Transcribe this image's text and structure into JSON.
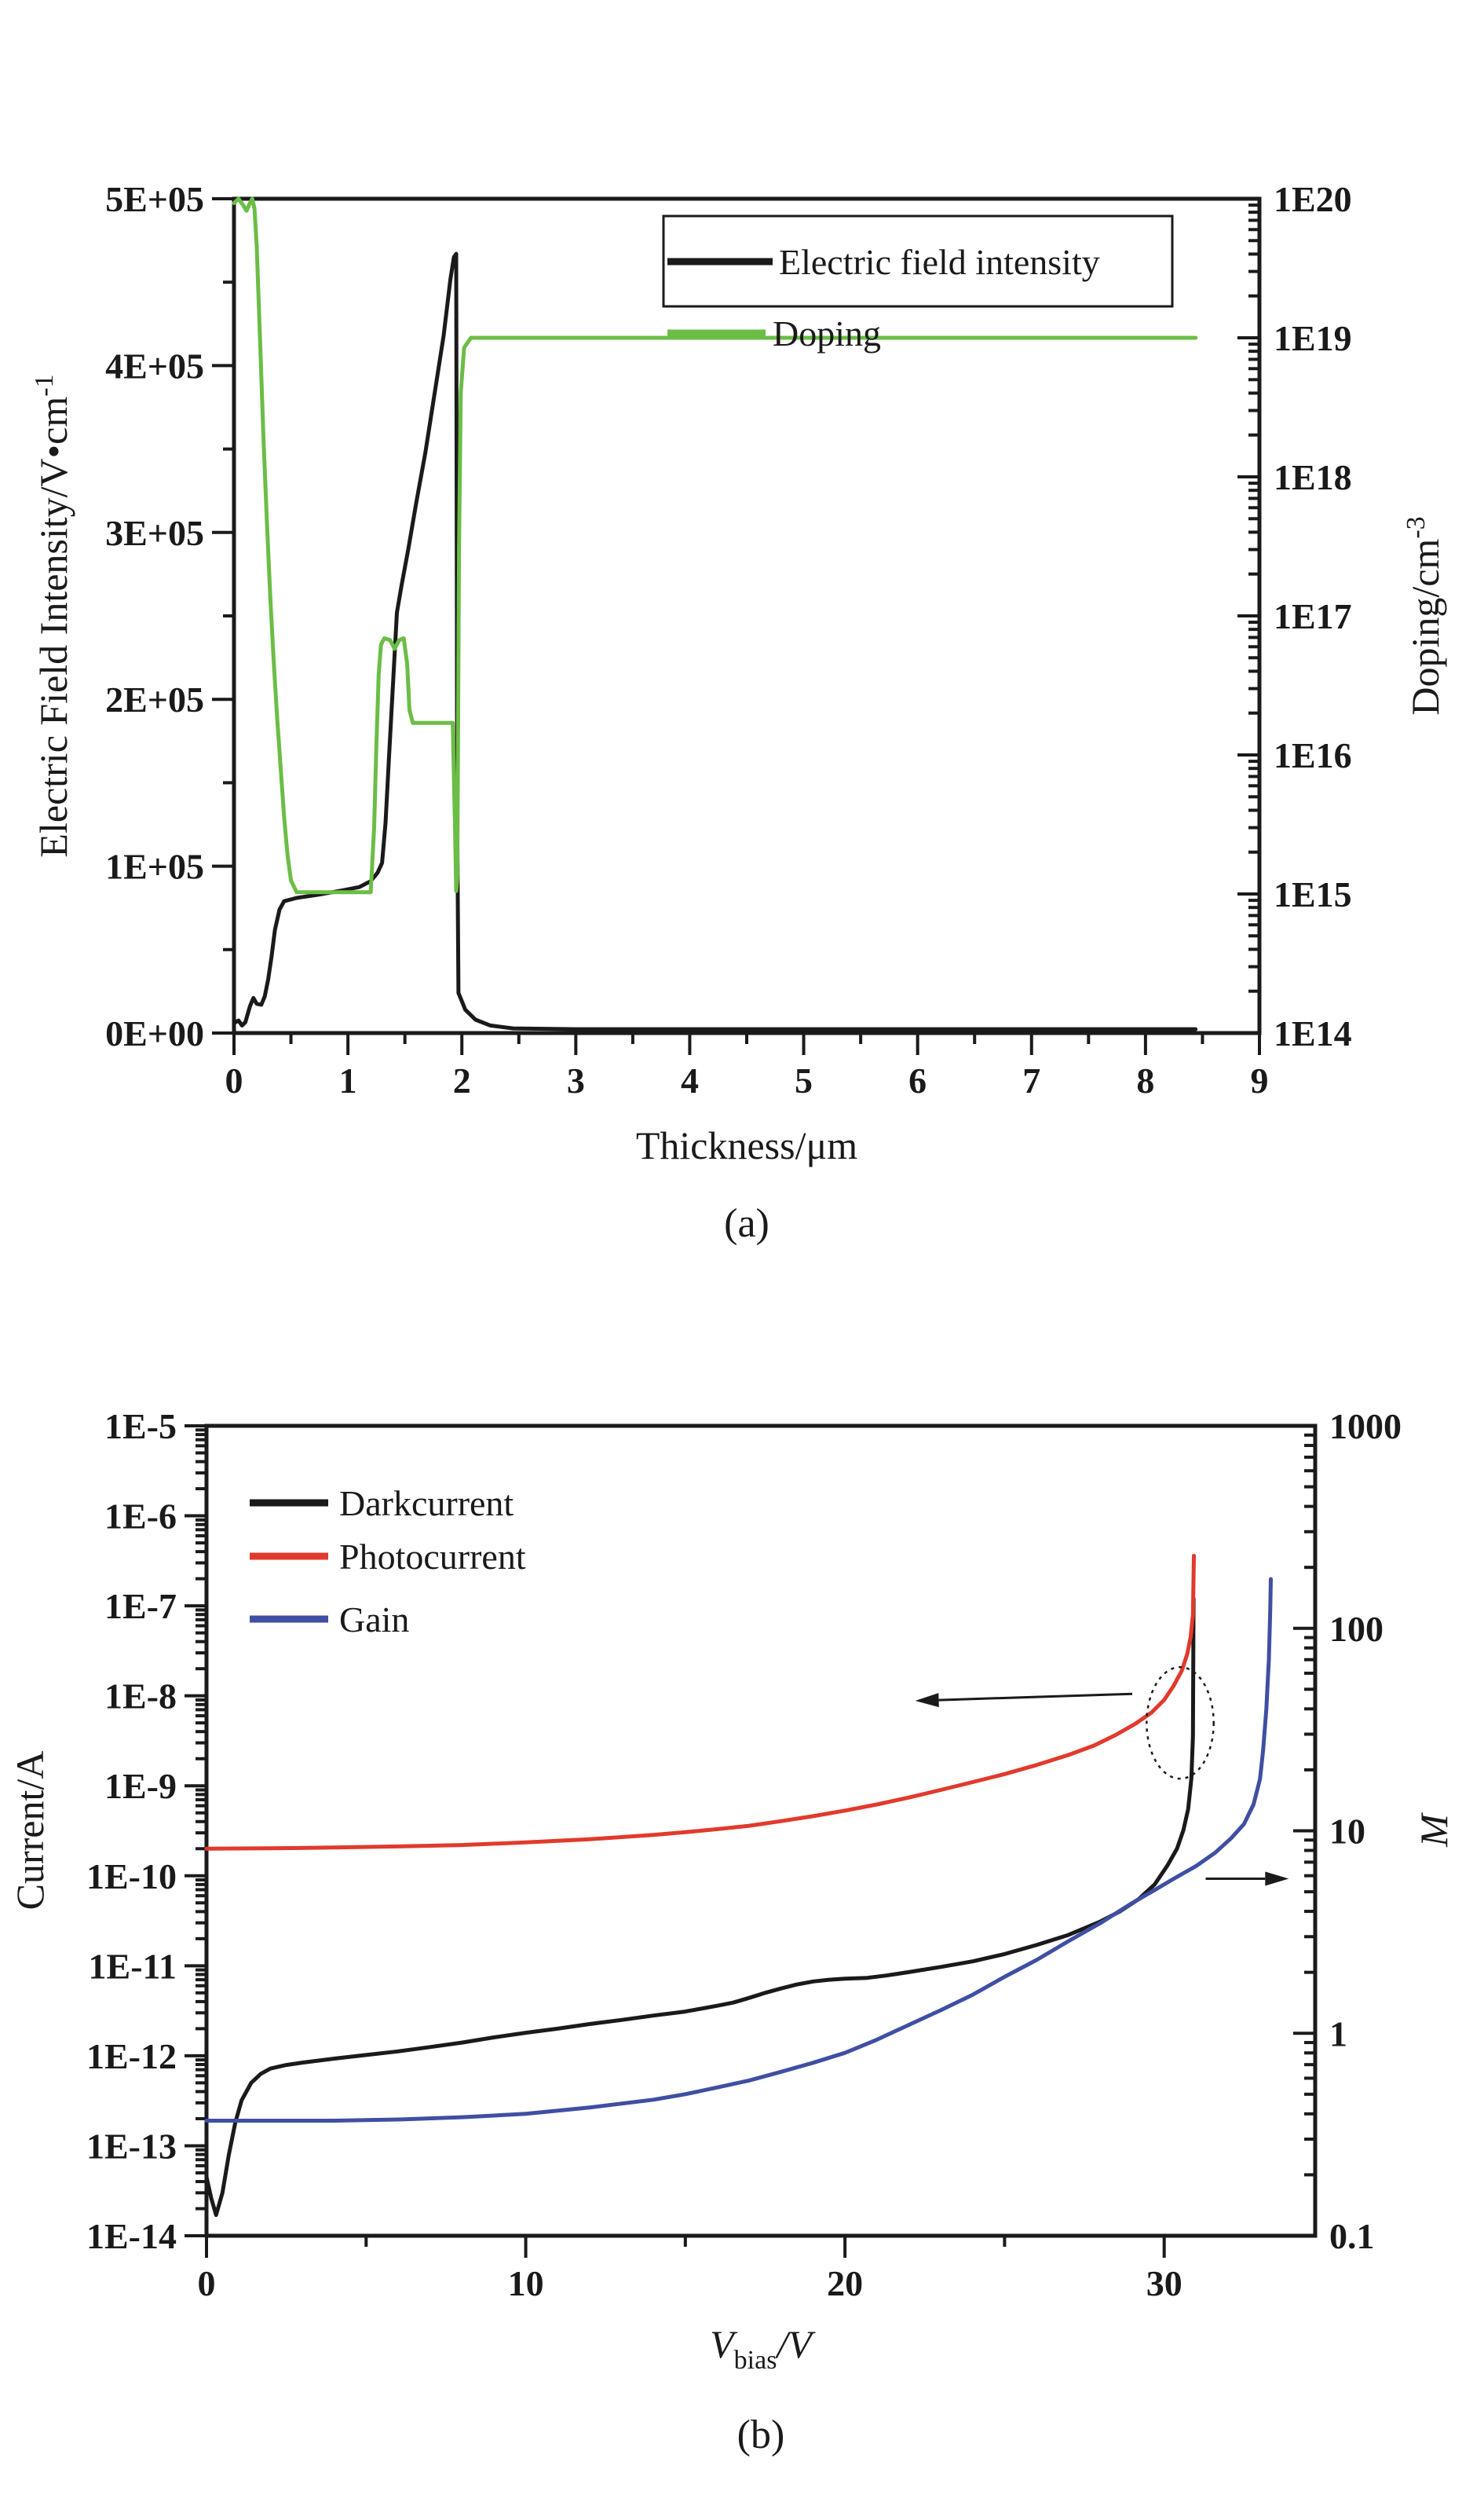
{
  "figure": {
    "background": "#ffffff"
  },
  "captions": {
    "a": "(a)",
    "b": "(b)"
  },
  "colors": {
    "electric_field": "#1a1a1a",
    "doping": "#6bbd46",
    "darkcurrent": "#1a1a1a",
    "photocurrent": "#e13a2c",
    "gain": "#3f4fa3"
  },
  "chart_data": [
    {
      "id": "a",
      "type": "line",
      "x_axis": {
        "label": "Thickness/μm",
        "scale": "linear",
        "range": [
          0,
          9
        ],
        "major_ticks": [
          0,
          1,
          2,
          3,
          4,
          5,
          6,
          7,
          8,
          9
        ],
        "tick_labels": [
          "0",
          "1",
          "2",
          "3",
          "4",
          "5",
          "6",
          "7",
          "8",
          "9"
        ],
        "minor_step": 0.5
      },
      "left_axis": {
        "label": "Electric Field Intensity/V•cm",
        "label_superscript": "-1",
        "scale": "linear",
        "range": [
          0,
          500000
        ],
        "major_ticks": [
          0,
          100000,
          200000,
          300000,
          400000,
          500000
        ],
        "tick_labels": [
          "0E+00",
          "1E+05",
          "2E+05",
          "3E+05",
          "4E+05",
          "5E+05"
        ],
        "minor_step": 50000
      },
      "right_axis": {
        "label": "Doping/cm",
        "label_superscript": "-3",
        "scale": "log",
        "range": [
          100000000000000.0,
          1e+20
        ],
        "tick_labels": [
          "1E14",
          "1E15",
          "1E16",
          "1E17",
          "1E18",
          "1E19",
          "1E20"
        ]
      },
      "legend": {
        "items": [
          {
            "label": "Electric field intensity",
            "color": "#1a1a1a",
            "boxed": true
          },
          {
            "label": "Doping",
            "color": "#6bbd46",
            "boxed": false
          }
        ]
      },
      "series": [
        {
          "name": "Electric field intensity",
          "axis": "left",
          "color": "#1a1a1a",
          "points": [
            [
              0,
              6000
            ],
            [
              0.04,
              7500
            ],
            [
              0.07,
              4500
            ],
            [
              0.1,
              6500
            ],
            [
              0.14,
              16000
            ],
            [
              0.17,
              21000
            ],
            [
              0.2,
              17500
            ],
            [
              0.24,
              17000
            ],
            [
              0.27,
              22000
            ],
            [
              0.3,
              32000
            ],
            [
              0.33,
              46000
            ],
            [
              0.36,
              62000
            ],
            [
              0.4,
              74000
            ],
            [
              0.44,
              79000
            ],
            [
              0.55,
              81000
            ],
            [
              0.75,
              83000
            ],
            [
              0.95,
              85500
            ],
            [
              1.1,
              87500
            ],
            [
              1.2,
              91000
            ],
            [
              1.26,
              96000
            ],
            [
              1.3,
              102000
            ],
            [
              1.33,
              126000
            ],
            [
              1.36,
              165000
            ],
            [
              1.4,
              215000
            ],
            [
              1.43,
              252000
            ],
            [
              1.47,
              268000
            ],
            [
              1.53,
              290000
            ],
            [
              1.6,
              318000
            ],
            [
              1.68,
              348000
            ],
            [
              1.76,
              383000
            ],
            [
              1.84,
              418000
            ],
            [
              1.9,
              452000
            ],
            [
              1.93,
              465000
            ],
            [
              1.95,
              467000
            ],
            [
              1.96,
              120000
            ],
            [
              1.97,
              24000
            ],
            [
              2.03,
              14000
            ],
            [
              2.12,
              8000
            ],
            [
              2.25,
              4500
            ],
            [
              2.45,
              2800
            ],
            [
              3,
              2300
            ],
            [
              8.44,
              2300
            ]
          ]
        },
        {
          "name": "Doping",
          "axis": "right",
          "color": "#6bbd46",
          "points": [
            [
              0,
              9.3e+19
            ],
            [
              0.04,
              1e+20
            ],
            [
              0.08,
              9e+19
            ],
            [
              0.11,
              8.2e+19
            ],
            [
              0.14,
              9.3e+19
            ],
            [
              0.16,
              1e+20
            ],
            [
              0.18,
              8.5e+19
            ],
            [
              0.2,
              4.5e+19
            ],
            [
              0.23,
              9e+18
            ],
            [
              0.26,
              1.8e+18
            ],
            [
              0.29,
              4.5e+17
            ],
            [
              0.32,
              1.3e+17
            ],
            [
              0.35,
              4.5e+16
            ],
            [
              0.38,
              1.8e+16
            ],
            [
              0.41,
              8000000000000000.0
            ],
            [
              0.44,
              3600000000000000.0
            ],
            [
              0.47,
              1900000000000000.0
            ],
            [
              0.5,
              1250000000000000.0
            ],
            [
              0.55,
              1030000000000000.0
            ],
            [
              1.2,
              1030000000000000.0
            ],
            [
              1.23,
              3000000000000000.0
            ],
            [
              1.25,
              1.2e+16
            ],
            [
              1.27,
              3.8e+16
            ],
            [
              1.29,
              6.2e+16
            ],
            [
              1.32,
              6.9e+16
            ],
            [
              1.37,
              6.7e+16
            ],
            [
              1.41,
              5.8e+16
            ],
            [
              1.45,
              6.7e+16
            ],
            [
              1.49,
              6.9e+16
            ],
            [
              1.52,
              4.5e+16
            ],
            [
              1.54,
              2.1e+16
            ],
            [
              1.57,
              1.7e+16
            ],
            [
              1.92,
              1.7e+16
            ],
            [
              1.94,
              3000000000000000.0
            ],
            [
              1.95,
              1050000000000000.0
            ],
            [
              1.96,
              1300000000000000.0
            ],
            [
              1.975,
              3e+17
            ],
            [
              1.99,
              4e+18
            ],
            [
              2.02,
              8.5e+18
            ],
            [
              2.08,
              1e+19
            ],
            [
              8.44,
              1e+19
            ]
          ]
        }
      ]
    },
    {
      "id": "b",
      "type": "line",
      "x_axis": {
        "label_parts": {
          "v": "V",
          "sub": "bias",
          "rest": "/V"
        },
        "scale": "linear",
        "range": [
          0,
          34.73
        ],
        "major_ticks": [
          0,
          10,
          20,
          30
        ],
        "tick_labels": [
          "0",
          "10",
          "20",
          "30"
        ],
        "minor_step": 5
      },
      "left_axis": {
        "label": "Current/A",
        "label_superscript": "",
        "scale": "log",
        "range": [
          1e-14,
          1e-05
        ],
        "tick_labels": [
          "1E-14",
          "1E-13",
          "1E-12",
          "1E-11",
          "1E-10",
          "1E-9",
          "1E-8",
          "1E-7",
          "1E-6",
          "1E-5"
        ]
      },
      "right_axis": {
        "label": "M",
        "label_italic": true,
        "label_superscript": "",
        "scale": "log",
        "range": [
          0.1,
          1000
        ],
        "tick_labels": [
          "0.1",
          "1",
          "10",
          "100",
          "1000"
        ]
      },
      "legend": {
        "items": [
          {
            "label": "Darkcurrent",
            "color": "#1a1a1a",
            "boxed": false
          },
          {
            "label": "Photocurrent",
            "color": "#e13a2c",
            "boxed": false
          },
          {
            "label": "Gain",
            "color": "#3f4fa3",
            "boxed": false
          }
        ]
      },
      "series": [
        {
          "name": "Darkcurrent",
          "axis": "left",
          "color": "#1a1a1a",
          "points": [
            [
              0,
              4.5e-14
            ],
            [
              0.15,
              2.6e-14
            ],
            [
              0.3,
              1.7e-14
            ],
            [
              0.5,
              3e-14
            ],
            [
              0.7,
              8e-14
            ],
            [
              0.9,
              1.8e-13
            ],
            [
              1.1,
              3.2e-13
            ],
            [
              1.4,
              5e-13
            ],
            [
              1.7,
              6.3e-13
            ],
            [
              2,
              7.2e-13
            ],
            [
              2.5,
              7.9e-13
            ],
            [
              3,
              8.4e-13
            ],
            [
              4,
              9.3e-13
            ],
            [
              5,
              1.02e-12
            ],
            [
              6,
              1.12e-12
            ],
            [
              7,
              1.25e-12
            ],
            [
              8,
              1.4e-12
            ],
            [
              9,
              1.6e-12
            ],
            [
              10,
              1.8e-12
            ],
            [
              11,
              2e-12
            ],
            [
              12,
              2.25e-12
            ],
            [
              13,
              2.5e-12
            ],
            [
              14,
              2.8e-12
            ],
            [
              15,
              3.1e-12
            ],
            [
              16,
              3.6e-12
            ],
            [
              16.5,
              3.9e-12
            ],
            [
              17,
              4.4e-12
            ],
            [
              17.5,
              5e-12
            ],
            [
              18,
              5.6e-12
            ],
            [
              18.5,
              6.2e-12
            ],
            [
              19,
              6.7e-12
            ],
            [
              19.5,
              7e-12
            ],
            [
              20,
              7.2e-12
            ],
            [
              20.7,
              7.35e-12
            ],
            [
              21.3,
              7.8e-12
            ],
            [
              22,
              8.5e-12
            ],
            [
              23,
              9.7e-12
            ],
            [
              24,
              1.12e-11
            ],
            [
              25,
              1.35e-11
            ],
            [
              26,
              1.7e-11
            ],
            [
              27,
              2.2e-11
            ],
            [
              28,
              3.1e-11
            ],
            [
              28.6,
              4e-11
            ],
            [
              29.2,
              5.5e-11
            ],
            [
              29.7,
              8e-11
            ],
            [
              30.1,
              1.3e-10
            ],
            [
              30.4,
              2e-10
            ],
            [
              30.6,
              3.2e-10
            ],
            [
              30.75,
              5.5e-10
            ],
            [
              30.85,
              1.2e-09
            ],
            [
              30.9,
              3.5e-09
            ],
            [
              30.92,
              1.2e-07
            ]
          ]
        },
        {
          "name": "Photocurrent",
          "axis": "left",
          "color": "#e13a2c",
          "points": [
            [
              0,
              2e-10
            ],
            [
              2,
              2.02e-10
            ],
            [
              4,
              2.06e-10
            ],
            [
              6,
              2.12e-10
            ],
            [
              8,
              2.2e-10
            ],
            [
              10,
              2.35e-10
            ],
            [
              12,
              2.55e-10
            ],
            [
              14,
              2.85e-10
            ],
            [
              15,
              3.05e-10
            ],
            [
              16,
              3.3e-10
            ],
            [
              17,
              3.6e-10
            ],
            [
              18,
              4.05e-10
            ],
            [
              19,
              4.6e-10
            ],
            [
              20,
              5.3e-10
            ],
            [
              21,
              6.2e-10
            ],
            [
              22,
              7.4e-10
            ],
            [
              23,
              9e-10
            ],
            [
              24,
              1.1e-09
            ],
            [
              25,
              1.35e-09
            ],
            [
              26,
              1.7e-09
            ],
            [
              27,
              2.2e-09
            ],
            [
              27.8,
              2.8e-09
            ],
            [
              28.5,
              3.7e-09
            ],
            [
              29.1,
              4.9e-09
            ],
            [
              29.6,
              6.5e-09
            ],
            [
              30,
              9e-09
            ],
            [
              30.3,
              1.3e-08
            ],
            [
              30.55,
              1.9e-08
            ],
            [
              30.72,
              2.9e-08
            ],
            [
              30.83,
              4.5e-08
            ],
            [
              30.9,
              8e-08
            ],
            [
              30.93,
              3.6e-07
            ]
          ]
        },
        {
          "name": "Gain",
          "axis": "right",
          "color": "#3f4fa3",
          "points": [
            [
              0,
              0.37
            ],
            [
              2,
              0.37
            ],
            [
              4,
              0.37
            ],
            [
              6,
              0.375
            ],
            [
              8,
              0.385
            ],
            [
              10,
              0.4
            ],
            [
              12,
              0.43
            ],
            [
              14,
              0.47
            ],
            [
              15,
              0.5
            ],
            [
              16,
              0.54
            ],
            [
              17,
              0.585
            ],
            [
              18,
              0.645
            ],
            [
              19,
              0.715
            ],
            [
              20,
              0.8
            ],
            [
              21,
              0.93
            ],
            [
              22,
              1.1
            ],
            [
              23,
              1.3
            ],
            [
              24,
              1.55
            ],
            [
              25,
              1.9
            ],
            [
              26,
              2.3
            ],
            [
              27,
              2.85
            ],
            [
              28,
              3.5
            ],
            [
              29,
              4.4
            ],
            [
              29.7,
              5.1
            ],
            [
              30.3,
              5.8
            ],
            [
              31,
              6.7
            ],
            [
              31.6,
              7.8
            ],
            [
              32.1,
              9.2
            ],
            [
              32.5,
              10.8
            ],
            [
              32.8,
              13.5
            ],
            [
              33,
              18
            ],
            [
              33.1,
              25
            ],
            [
              33.2,
              40
            ],
            [
              33.28,
              70
            ],
            [
              33.32,
              120
            ],
            [
              33.34,
              175
            ]
          ]
        }
      ],
      "annotations": {
        "ellipse": {
          "x": 30.5,
          "y": 5e-09,
          "rx_volts": 1.05,
          "ry_decades": 0.62
        },
        "arrows": [
          {
            "tail": [
              29.0,
              1.05e-08
            ],
            "tip": [
              22.2,
              8.8e-09
            ],
            "axis": "left"
          },
          {
            "tail": [
              31.3,
              5.8
            ],
            "tip": [
              33.9,
              5.8
            ],
            "axis": "right"
          }
        ]
      }
    }
  ]
}
